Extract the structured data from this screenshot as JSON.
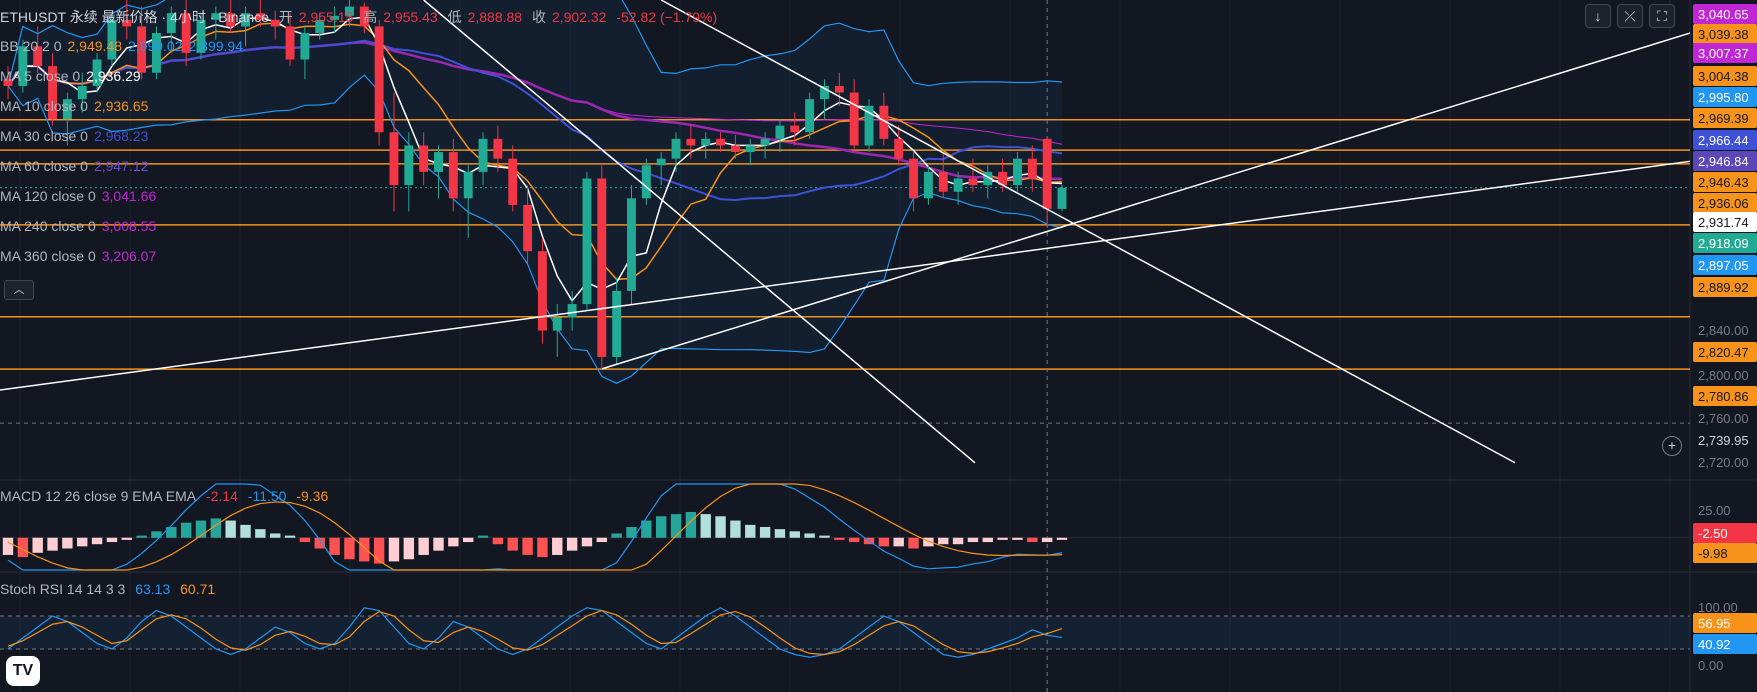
{
  "header": {
    "symbol": "ETHUSDT 永续 最新价格 · 4小时 · Binance",
    "open_label": "开",
    "open": "2,955.15",
    "high_label": "高",
    "high": "2,955.43",
    "low_label": "低",
    "low": "2,888.88",
    "close_label": "收",
    "close": "2,902.32",
    "change": "-52.82 (−1.79%)"
  },
  "indicators": [
    {
      "label": "BB 20 2 0",
      "values": [
        "2,949.48",
        "2,999.02",
        "2,899.94"
      ],
      "colors": [
        "#f7931a",
        "#2196f3",
        "#2196f3"
      ]
    },
    {
      "label": "MA 5 close 0",
      "values": [
        "2,936.29"
      ],
      "colors": [
        "#ffffff"
      ]
    },
    {
      "label": "MA 10 close 0",
      "values": [
        "2,936.65"
      ],
      "colors": [
        "#f7931a"
      ]
    },
    {
      "label": "MA 30 close 0",
      "values": [
        "2,968.23"
      ],
      "colors": [
        "#3f51d6"
      ]
    },
    {
      "label": "MA 60 close 0",
      "values": [
        "2,947.12"
      ],
      "colors": [
        "#6a4fd6"
      ]
    },
    {
      "label": "MA 120 close 0",
      "values": [
        "3,041.66"
      ],
      "colors": [
        "#c026d3"
      ]
    },
    {
      "label": "MA 240 close 0",
      "values": [
        "3,008.55"
      ],
      "colors": [
        "#c026d3"
      ]
    },
    {
      "label": "MA 360 close 0",
      "values": [
        "3,206.07"
      ],
      "colors": [
        "#c026d3"
      ]
    }
  ],
  "macd_legend": {
    "label": "MACD 12 26 close 9 EMA EMA",
    "values": [
      "-2.14",
      "-11.50",
      "-9.36"
    ],
    "colors": [
      "#f23645",
      "#2196f3",
      "#f7931a"
    ]
  },
  "stoch_legend": {
    "label": "Stoch RSI 14 14 3 3",
    "values": [
      "63.13",
      "60.71"
    ],
    "colors": [
      "#2196f3",
      "#f7931a"
    ]
  },
  "toolbar": {
    "down_icon": "↓",
    "collapse_icon": "⤫",
    "fullscreen_icon": "⛶",
    "hide_icon": "︿",
    "logo_text": "TV"
  },
  "price_axis": {
    "ticks": [
      "2,840.00",
      "2,800.00",
      "2,760.00",
      "2,720.00"
    ],
    "labels": [
      {
        "text": "3,040.65",
        "bg": "#c026d3",
        "fg": "#ffffff"
      },
      {
        "text": "3,039.38",
        "bg": "#f7931a",
        "fg": "#131722"
      },
      {
        "text": "3,007.37",
        "bg": "#c026d3",
        "fg": "#ffffff"
      },
      {
        "text": "3,004.38",
        "bg": "#f7931a",
        "fg": "#131722"
      },
      {
        "text": "2,995.80",
        "bg": "#2196f3",
        "fg": "#ffffff"
      },
      {
        "text": "2,969.39",
        "bg": "#f7931a",
        "fg": "#131722"
      },
      {
        "text": "2,966.44",
        "bg": "#3f51d6",
        "fg": "#ffffff"
      },
      {
        "text": "2,946.84",
        "bg": "#5b47b8",
        "fg": "#ffffff"
      },
      {
        "text": "2,946.43",
        "bg": "#f7931a",
        "fg": "#131722"
      },
      {
        "text": "2,936.06",
        "bg": "#f7931a",
        "fg": "#131722"
      },
      {
        "text": "2,931.74",
        "bg": "#ffffff",
        "fg": "#131722"
      },
      {
        "text": "2,918.09",
        "bg": "#22ab94",
        "fg": "#ffffff"
      },
      {
        "text": "2,897.05",
        "bg": "#2196f3",
        "fg": "#ffffff"
      },
      {
        "text": "2,889.92",
        "bg": "#f7931a",
        "fg": "#131722"
      },
      {
        "text": "2,820.47",
        "bg": "#f7931a",
        "fg": "#131722"
      },
      {
        "text": "2,780.86",
        "bg": "#f7931a",
        "fg": "#131722"
      },
      {
        "text": "2,739.95",
        "bg": "#131722",
        "fg": "#d1d4dc"
      }
    ],
    "macd_ticks": [
      "25.00"
    ],
    "macd_labels": [
      {
        "text": "-2.50",
        "bg": "#f23645",
        "fg": "#ffffff"
      },
      {
        "text": "-9.98",
        "bg": "#f7931a",
        "fg": "#131722"
      }
    ],
    "stoch_ticks": [
      "100.00",
      "0.00"
    ],
    "stoch_labels": [
      {
        "text": "56.95",
        "bg": "#f7931a",
        "fg": "#ffffff"
      },
      {
        "text": "40.92",
        "bg": "#2196f3",
        "fg": "#ffffff"
      }
    ]
  },
  "chart_data": {
    "type": "candlestick",
    "title": "ETHUSDT 永续 最新价格 · 4小时 · Binance",
    "ylim": [
      2700,
      3060
    ],
    "horizontal_levels": [
      2969.39,
      2946.43,
      2936.06,
      2889.92,
      2820.47,
      2780.86
    ],
    "crosshair_price": 2739.95,
    "candles": [
      [
        3000,
        3010,
        2985,
        2995
      ],
      [
        2995,
        3030,
        2990,
        3025
      ],
      [
        3025,
        3040,
        3005,
        3010
      ],
      [
        3010,
        3020,
        2965,
        2970
      ],
      [
        2970,
        2990,
        2950,
        2985
      ],
      [
        2985,
        3005,
        2975,
        2995
      ],
      [
        2995,
        3020,
        2990,
        3015
      ],
      [
        3015,
        3050,
        3010,
        3045
      ],
      [
        3045,
        3060,
        3030,
        3040
      ],
      [
        3040,
        3055,
        3000,
        3005
      ],
      [
        3005,
        3040,
        3000,
        3035
      ],
      [
        3035,
        3055,
        3020,
        3050
      ],
      [
        3050,
        3060,
        3010,
        3020
      ],
      [
        3020,
        3050,
        3015,
        3045
      ],
      [
        3045,
        3055,
        3030,
        3050
      ],
      [
        3050,
        3060,
        3035,
        3040
      ],
      [
        3040,
        3055,
        3025,
        3050
      ],
      [
        3050,
        3060,
        3040,
        3045
      ],
      [
        3045,
        3052,
        3030,
        3040
      ],
      [
        3040,
        3050,
        3010,
        3015
      ],
      [
        3015,
        3040,
        3000,
        3035
      ],
      [
        3035,
        3050,
        3030,
        3045
      ],
      [
        3045,
        3055,
        3035,
        3048
      ],
      [
        3048,
        3060,
        3040,
        3055
      ],
      [
        3055,
        3058,
        3035,
        3040
      ],
      [
        3040,
        3045,
        2950,
        2960
      ],
      [
        2960,
        2990,
        2900,
        2920
      ],
      [
        2920,
        2960,
        2900,
        2950
      ],
      [
        2950,
        2960,
        2920,
        2930
      ],
      [
        2930,
        2950,
        2910,
        2945
      ],
      [
        2945,
        2955,
        2900,
        2910
      ],
      [
        2910,
        2935,
        2880,
        2930
      ],
      [
        2930,
        2960,
        2920,
        2955
      ],
      [
        2955,
        2965,
        2930,
        2940
      ],
      [
        2940,
        2950,
        2900,
        2905
      ],
      [
        2905,
        2920,
        2860,
        2870
      ],
      [
        2870,
        2880,
        2800,
        2810
      ],
      [
        2810,
        2830,
        2790,
        2820
      ],
      [
        2820,
        2840,
        2810,
        2830
      ],
      [
        2830,
        2930,
        2825,
        2925
      ],
      [
        2925,
        2935,
        2780,
        2790
      ],
      [
        2790,
        2850,
        2785,
        2840
      ],
      [
        2840,
        2920,
        2830,
        2910
      ],
      [
        2910,
        2940,
        2905,
        2935
      ],
      [
        2935,
        2945,
        2920,
        2940
      ],
      [
        2940,
        2960,
        2930,
        2955
      ],
      [
        2955,
        2965,
        2940,
        2950
      ],
      [
        2950,
        2960,
        2940,
        2955
      ],
      [
        2955,
        2960,
        2945,
        2950
      ],
      [
        2950,
        2958,
        2940,
        2945
      ],
      [
        2945,
        2955,
        2935,
        2950
      ],
      [
        2950,
        2960,
        2940,
        2955
      ],
      [
        2955,
        2970,
        2945,
        2965
      ],
      [
        2965,
        2975,
        2950,
        2960
      ],
      [
        2960,
        2990,
        2955,
        2985
      ],
      [
        2985,
        3000,
        2970,
        2995
      ],
      [
        2995,
        3005,
        2980,
        2990
      ],
      [
        2990,
        3000,
        2945,
        2950
      ],
      [
        2950,
        2985,
        2945,
        2980
      ],
      [
        2980,
        2990,
        2950,
        2955
      ],
      [
        2955,
        2965,
        2935,
        2940
      ],
      [
        2940,
        2945,
        2900,
        2910
      ],
      [
        2910,
        2935,
        2905,
        2930
      ],
      [
        2930,
        2945,
        2910,
        2915
      ],
      [
        2915,
        2930,
        2905,
        2925
      ],
      [
        2925,
        2940,
        2915,
        2920
      ],
      [
        2920,
        2935,
        2910,
        2930
      ],
      [
        2930,
        2940,
        2915,
        2920
      ],
      [
        2920,
        2945,
        2915,
        2940
      ],
      [
        2940,
        2950,
        2915,
        2925
      ],
      [
        2955,
        2956,
        2889,
        2902
      ],
      [
        2902,
        2920,
        2900,
        2918
      ]
    ],
    "macd": {
      "histogram": [
        -8,
        -9,
        -7,
        -6,
        -5,
        -4,
        -3,
        -2,
        -1,
        1,
        3,
        5,
        7,
        8,
        9,
        8,
        6,
        4,
        2,
        1,
        -2,
        -5,
        -8,
        -10,
        -11,
        -12,
        -11,
        -10,
        -8,
        -6,
        -4,
        -2,
        1,
        -3,
        -6,
        -8,
        -9,
        -8,
        -6,
        -4,
        -2,
        2,
        5,
        8,
        10,
        11,
        12,
        11,
        10,
        8,
        6,
        5,
        4,
        3,
        2,
        1,
        -1,
        -2,
        -3,
        -4,
        -4,
        -5,
        -4,
        -3,
        -3,
        -2,
        -2,
        -1,
        -1,
        -2,
        -2,
        -1
      ],
      "ylim": [
        -15,
        25
      ]
    },
    "stoch_rsi": {
      "k": [
        20,
        40,
        60,
        80,
        70,
        50,
        30,
        20,
        40,
        70,
        90,
        80,
        60,
        40,
        20,
        10,
        20,
        40,
        60,
        50,
        30,
        20,
        30,
        60,
        95,
        90,
        60,
        30,
        20,
        40,
        70,
        60,
        40,
        20,
        10,
        20,
        40,
        60,
        80,
        95,
        90,
        70,
        50,
        30,
        20,
        40,
        60,
        80,
        95,
        80,
        60,
        40,
        20,
        10,
        5,
        10,
        20,
        40,
        60,
        80,
        70,
        50,
        30,
        10,
        5,
        10,
        20,
        30,
        40,
        55,
        45,
        41
      ],
      "d": [
        25,
        35,
        50,
        65,
        70,
        60,
        45,
        30,
        35,
        55,
        75,
        82,
        75,
        58,
        38,
        22,
        18,
        28,
        45,
        52,
        43,
        30,
        28,
        42,
        70,
        88,
        80,
        55,
        35,
        32,
        50,
        60,
        52,
        38,
        22,
        18,
        28,
        45,
        62,
        80,
        90,
        82,
        65,
        45,
        30,
        32,
        48,
        65,
        82,
        88,
        78,
        60,
        40,
        22,
        12,
        10,
        15,
        28,
        45,
        62,
        70,
        62,
        45,
        28,
        15,
        12,
        15,
        22,
        30,
        42,
        48,
        57
      ],
      "ylim": [
        0,
        100
      ]
    }
  }
}
